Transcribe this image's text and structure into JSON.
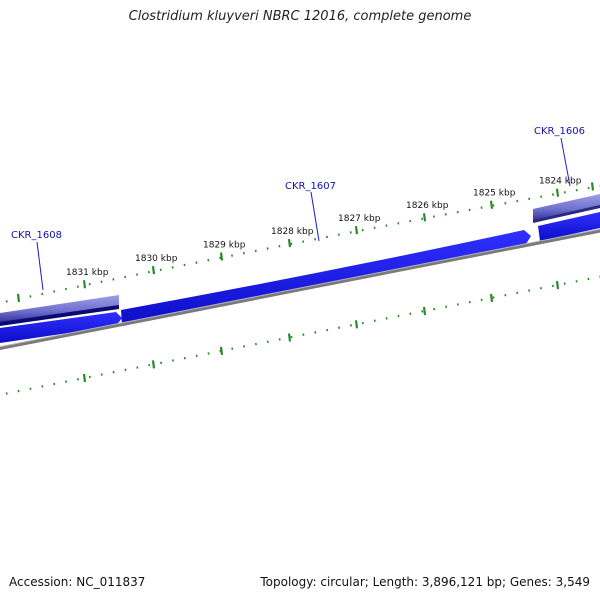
{
  "title": "Clostridium kluyveri NBRC 12016, complete genome",
  "footer": {
    "accession": "Accession: NC_011837",
    "summary": "Topology: circular; Length: 3,896,121 bp; Genes: 3,549"
  },
  "ticks": [
    {
      "label": "1831 kbp",
      "value": 1831
    },
    {
      "label": "1830 kbp",
      "value": 1830
    },
    {
      "label": "1829 kbp",
      "value": 1829
    },
    {
      "label": "1828 kbp",
      "value": 1828
    },
    {
      "label": "1827 kbp",
      "value": 1827
    },
    {
      "label": "1826 kbp",
      "value": 1826
    },
    {
      "label": "1825 kbp",
      "value": 1825
    },
    {
      "label": "1824 kbp",
      "value": 1824
    }
  ],
  "genes": [
    {
      "name": "CKR_1608",
      "strand": "reverse"
    },
    {
      "name": "CKR_1607",
      "strand": "forward"
    },
    {
      "name": "CKR_1606",
      "strand": "reverse"
    }
  ],
  "colors": {
    "gene_forward": "#1a1aee",
    "gene_reverse_light": "#8f8fe0",
    "gene_reverse_dark": "#0a0a70",
    "backbone": "#7a7a7a",
    "ticks": "#2a8a2a",
    "gene_label": "#1010b0"
  }
}
